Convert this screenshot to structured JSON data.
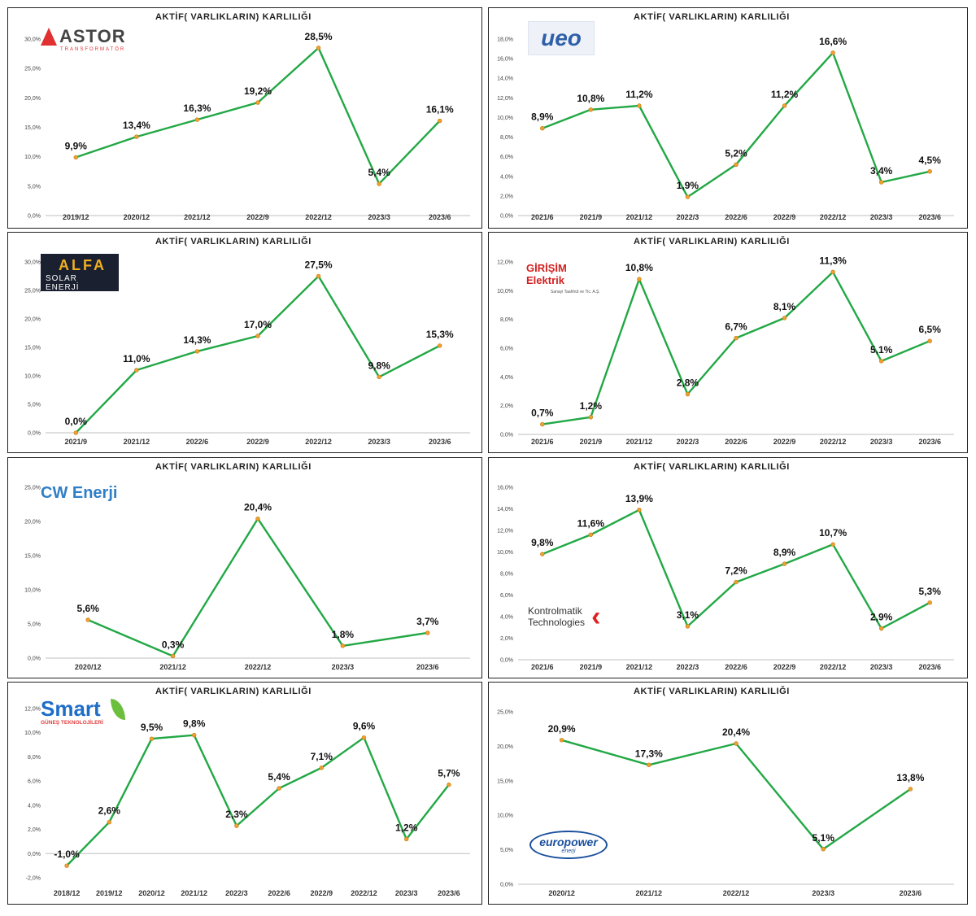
{
  "colors": {
    "line": "#22a845",
    "marker": "#f0a030",
    "grid": "#e6e6e6",
    "axis": "#bfbfbf"
  },
  "chart_data": [
    {
      "id": "astor",
      "type": "line",
      "title": "AKTİF( VARLIKLARIN) KARLILIĞI",
      "logo": {
        "name": "astor-logo",
        "text": "ASTOR",
        "subtext": "TRANSFORMATÖR",
        "color": "#e03030"
      },
      "categories": [
        "2019/12",
        "2020/12",
        "2021/12",
        "2022/9",
        "2022/12",
        "2023/3",
        "2023/6"
      ],
      "values": [
        9.9,
        13.4,
        16.3,
        19.2,
        28.5,
        5.4,
        16.1
      ],
      "labels": [
        "9,9%",
        "13,4%",
        "16,3%",
        "19,2%",
        "28,5%",
        "5,4%",
        "16,1%"
      ],
      "yticks": [
        "0,0%",
        "5,0%",
        "10,0%",
        "15,0%",
        "20,0%",
        "25,0%",
        "30,0%"
      ],
      "ylim": [
        0,
        30
      ],
      "grid": false
    },
    {
      "id": "ueo",
      "type": "line",
      "title": "AKTİF( VARLIKLARIN) KARLILIĞI",
      "logo": {
        "name": "ueo-logo",
        "text": "ueo",
        "subtext": "",
        "color": "#2f5fa8"
      },
      "categories": [
        "2021/6",
        "2021/9",
        "2021/12",
        "2022/3",
        "2022/6",
        "2022/9",
        "2022/12",
        "2023/3",
        "2023/6"
      ],
      "values": [
        8.9,
        10.8,
        11.2,
        1.9,
        5.2,
        11.2,
        16.6,
        3.4,
        4.5
      ],
      "labels": [
        "8,9%",
        "10,8%",
        "11,2%",
        "1,9%",
        "5,2%",
        "11,2%",
        "16,6%",
        "3,4%",
        "4,5%"
      ],
      "yticks": [
        "0,0%",
        "2,0%",
        "4,0%",
        "6,0%",
        "8,0%",
        "10,0%",
        "12,0%",
        "14,0%",
        "16,0%",
        "18,0%"
      ],
      "ylim": [
        0,
        18
      ],
      "grid": false
    },
    {
      "id": "alfa",
      "type": "line",
      "title": "AKTİF( VARLIKLARIN) KARLILIĞI",
      "logo": {
        "name": "alfa-solar-logo",
        "text": "ALFA",
        "subtext": "SOLAR ENERJİ",
        "color": "#f0b020"
      },
      "categories": [
        "2021/9",
        "2021/12",
        "2022/6",
        "2022/9",
        "2022/12",
        "2023/3",
        "2023/6"
      ],
      "values": [
        0.0,
        11.0,
        14.3,
        17.0,
        27.5,
        9.8,
        15.3
      ],
      "labels": [
        "0,0%",
        "11,0%",
        "14,3%",
        "17,0%",
        "27,5%",
        "9,8%",
        "15,3%"
      ],
      "yticks": [
        "0,0%",
        "5,0%",
        "10,0%",
        "15,0%",
        "20,0%",
        "25,0%",
        "30,0%"
      ],
      "ylim": [
        0,
        30
      ],
      "grid": false
    },
    {
      "id": "girisim",
      "type": "line",
      "title": "AKTİF( VARLIKLARIN) KARLILIĞI",
      "logo": {
        "name": "girisim-elektrik-logo",
        "text": "GİRİŞİM Elektrik",
        "subtext": "Sanayi Taahhüt ve Tic. A.Ş.",
        "color": "#d42020"
      },
      "categories": [
        "2021/6",
        "2021/9",
        "2021/12",
        "2022/3",
        "2022/6",
        "2022/9",
        "2022/12",
        "2023/3",
        "2023/6"
      ],
      "values": [
        0.7,
        1.2,
        10.8,
        2.8,
        6.7,
        8.1,
        11.3,
        5.1,
        6.5
      ],
      "labels": [
        "0,7%",
        "1,2%",
        "10,8%",
        "2,8%",
        "6,7%",
        "8,1%",
        "11,3%",
        "5,1%",
        "6,5%"
      ],
      "yticks": [
        "0,0%",
        "2,0%",
        "4,0%",
        "6,0%",
        "8,0%",
        "10,0%",
        "12,0%"
      ],
      "ylim": [
        0,
        12
      ],
      "grid": false
    },
    {
      "id": "cw",
      "type": "line",
      "title": "AKTİF( VARLIKLARIN) KARLILIĞI",
      "logo": {
        "name": "cw-enerji-logo",
        "text": "CW Enerji",
        "subtext": "",
        "color": "#2f7fc8"
      },
      "categories": [
        "2020/12",
        "2021/12",
        "2022/12",
        "2023/3",
        "2023/6"
      ],
      "values": [
        5.6,
        0.3,
        20.4,
        1.8,
        3.7
      ],
      "labels": [
        "5,6%",
        "0,3%",
        "20,4%",
        "1,8%",
        "3,7%"
      ],
      "yticks": [
        "0,0%",
        "5,0%",
        "10,0%",
        "15,0%",
        "20,0%",
        "25,0%"
      ],
      "ylim": [
        0,
        25
      ],
      "grid": false
    },
    {
      "id": "kontrolmatik",
      "type": "line",
      "title": "AKTİF( VARLIKLARIN) KARLILIĞI",
      "logo": {
        "name": "kontrolmatik-logo",
        "text": "Kontrolmatik",
        "subtext": "Technologies",
        "color": "#e02020"
      },
      "categories": [
        "2021/6",
        "2021/9",
        "2021/12",
        "2022/3",
        "2022/6",
        "2022/9",
        "2022/12",
        "2023/3",
        "2023/6"
      ],
      "values": [
        9.8,
        11.6,
        13.9,
        3.1,
        7.2,
        8.9,
        10.7,
        2.9,
        5.3
      ],
      "labels": [
        "9,8%",
        "11,6%",
        "13,9%",
        "3,1%",
        "7,2%",
        "8,9%",
        "10,7%",
        "2,9%",
        "5,3%"
      ],
      "yticks": [
        "0,0%",
        "2,0%",
        "4,0%",
        "6,0%",
        "8,0%",
        "10,0%",
        "12,0%",
        "14,0%",
        "16,0%"
      ],
      "ylim": [
        0,
        16
      ],
      "grid": false
    },
    {
      "id": "smart",
      "type": "line",
      "title": "AKTİF( VARLIKLARIN) KARLILIĞI",
      "logo": {
        "name": "smart-gunes-logo",
        "text": "Smart",
        "subtext": "GÜNEŞ TEKNOLOJİLERİ",
        "color": "#1e6ec8"
      },
      "categories": [
        "2018/12",
        "2019/12",
        "2020/12",
        "2021/12",
        "2022/3",
        "2022/6",
        "2022/9",
        "2022/12",
        "2023/3",
        "2023/6"
      ],
      "values": [
        -1.0,
        2.6,
        9.5,
        9.8,
        2.3,
        5.4,
        7.1,
        9.6,
        1.2,
        5.7
      ],
      "labels": [
        "-1,0%",
        "2,6%",
        "9,5%",
        "9,8%",
        "2,3%",
        "5,4%",
        "7,1%",
        "9,6%",
        "1,2%",
        "5,7%"
      ],
      "yticks": [
        "-2,0%",
        "0,0%",
        "2,0%",
        "4,0%",
        "6,0%",
        "8,0%",
        "10,0%",
        "12,0%"
      ],
      "ylim": [
        -2,
        12
      ],
      "grid": false
    },
    {
      "id": "europower",
      "type": "line",
      "title": "AKTİF( VARLIKLARIN) KARLILIĞI",
      "logo": {
        "name": "europower-logo",
        "text": "europower",
        "subtext": "enerji",
        "color": "#1a4f9c"
      },
      "categories": [
        "2020/12",
        "2021/12",
        "2022/12",
        "2023/3",
        "2023/6"
      ],
      "values": [
        20.9,
        17.3,
        20.4,
        5.1,
        13.8
      ],
      "labels": [
        "20,9%",
        "17,3%",
        "20,4%",
        "5,1%",
        "13,8%"
      ],
      "yticks": [
        "0,0%",
        "5,0%",
        "10,0%",
        "15,0%",
        "20,0%",
        "25,0%"
      ],
      "ylim": [
        0,
        25
      ],
      "grid": false
    }
  ]
}
